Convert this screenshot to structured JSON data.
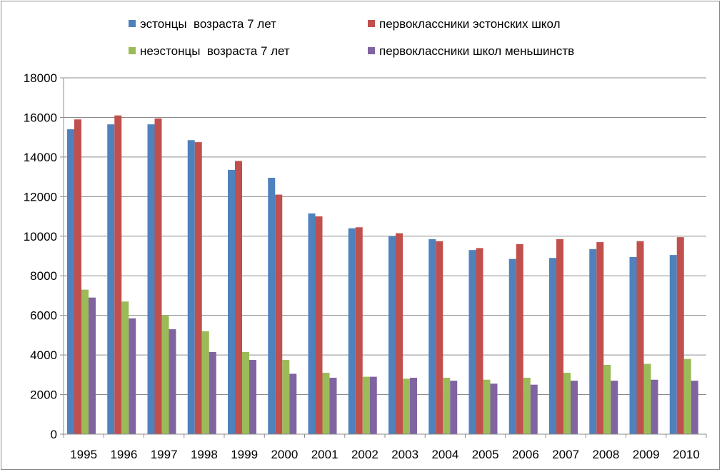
{
  "chart_data": {
    "type": "bar",
    "title": "",
    "xlabel": "",
    "ylabel": "",
    "ylim": [
      0,
      18000
    ],
    "yticks": [
      0,
      2000,
      4000,
      6000,
      8000,
      10000,
      12000,
      14000,
      16000,
      18000
    ],
    "grid": true,
    "legend_position": "top",
    "categories": [
      "1995",
      "1996",
      "1997",
      "1998",
      "1999",
      "2000",
      "2001",
      "2002",
      "2003",
      "2004",
      "2005",
      "2006",
      "2007",
      "2008",
      "2009",
      "2010"
    ],
    "series": [
      {
        "name": "эстонцы  возраста 7 лет",
        "color": "#4f81bd",
        "values": [
          15400,
          15650,
          15650,
          14850,
          13350,
          12950,
          11150,
          10400,
          10000,
          9850,
          9300,
          8850,
          8900,
          9350,
          8950,
          9050
        ]
      },
      {
        "name": "первоклассники эстонских школ",
        "color": "#c0504d",
        "values": [
          15900,
          16100,
          15950,
          14750,
          13800,
          12100,
          11000,
          10450,
          10150,
          9750,
          9400,
          9600,
          9850,
          9700,
          9750,
          9950
        ]
      },
      {
        "name": "неэстонцы  возраста 7 лет",
        "color": "#9bbb59",
        "values": [
          7300,
          6700,
          6000,
          5200,
          4150,
          3750,
          3100,
          2900,
          2800,
          2850,
          2750,
          2850,
          3100,
          3500,
          3550,
          3800
        ]
      },
      {
        "name": "первоклассники школ меньшинств",
        "color": "#8064a2",
        "values": [
          6900,
          5850,
          5300,
          4150,
          3750,
          3050,
          2850,
          2900,
          2850,
          2700,
          2550,
          2500,
          2700,
          2700,
          2750,
          2700
        ]
      }
    ]
  }
}
